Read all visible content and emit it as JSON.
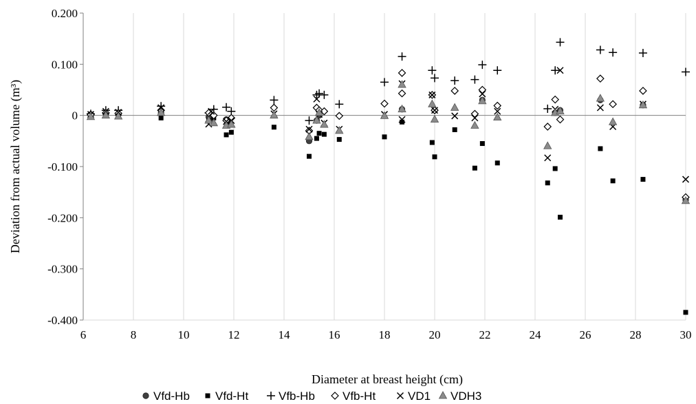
{
  "chart_data": {
    "type": "scatter",
    "xlabel": "Diameter at breast height (cm)",
    "ylabel": "Deviation from actual volume (m³)",
    "xlim": [
      6,
      30
    ],
    "ylim": [
      -0.4,
      0.2
    ],
    "x_ticks": [
      "6",
      "8",
      "10",
      "12",
      "14",
      "16",
      "18",
      "20",
      "22",
      "24",
      "26",
      "28",
      "30"
    ],
    "y_ticks": [
      "0.200",
      "0.100",
      "0",
      "-0.100",
      "-0.200",
      "-0.300",
      "-0.400"
    ],
    "grid": "vertical",
    "legend_position": "bottom",
    "series": [
      {
        "name": "Vfd-Hb",
        "marker": "circle",
        "color": "#404040",
        "points": [
          [
            6.3,
            0.002
          ],
          [
            6.9,
            0.003
          ],
          [
            7.4,
            0.002
          ],
          [
            9.1,
            0.005
          ],
          [
            11,
            -0.003
          ],
          [
            11.1,
            -0.005
          ],
          [
            11.7,
            -0.008
          ],
          [
            11.8,
            -0.012
          ],
          [
            15,
            -0.05
          ],
          [
            15.3,
            -0.01
          ],
          [
            15.4,
            0.0
          ],
          [
            18.7,
            0.012
          ],
          [
            20,
            0.01
          ],
          [
            21.9,
            0.03
          ],
          [
            24.8,
            0.005
          ],
          [
            25,
            0.01
          ],
          [
            26.6,
            0.03
          ],
          [
            28.3,
            0.02
          ],
          [
            30,
            -0.165
          ]
        ]
      },
      {
        "name": "Vfd-Ht",
        "marker": "square",
        "color": "#000000",
        "points": [
          [
            6.3,
            -0.001
          ],
          [
            6.9,
            -0.001
          ],
          [
            7.4,
            -0.001
          ],
          [
            9.1,
            -0.005
          ],
          [
            11,
            -0.01
          ],
          [
            11.2,
            -0.005
          ],
          [
            11.7,
            -0.038
          ],
          [
            11.9,
            -0.033
          ],
          [
            13.6,
            -0.023
          ],
          [
            15,
            -0.08
          ],
          [
            15.3,
            -0.045
          ],
          [
            15.4,
            -0.035
          ],
          [
            15.6,
            -0.037
          ],
          [
            16.2,
            -0.047
          ],
          [
            18,
            -0.042
          ],
          [
            18.7,
            -0.013
          ],
          [
            19.9,
            -0.053
          ],
          [
            20,
            -0.081
          ],
          [
            20.8,
            -0.028
          ],
          [
            21.6,
            -0.103
          ],
          [
            21.9,
            -0.055
          ],
          [
            22.5,
            -0.093
          ],
          [
            24.5,
            -0.132
          ],
          [
            24.8,
            -0.104
          ],
          [
            25,
            -0.199
          ],
          [
            26.6,
            -0.065
          ],
          [
            27.1,
            -0.128
          ],
          [
            28.3,
            -0.125
          ],
          [
            30,
            -0.385
          ]
        ]
      },
      {
        "name": "Vfb-Hb",
        "marker": "plus",
        "color": "#000000",
        "points": [
          [
            6.3,
            0.003
          ],
          [
            6.9,
            0.01
          ],
          [
            7.4,
            0.01
          ],
          [
            9.1,
            0.018
          ],
          [
            11,
            0.005
          ],
          [
            11.2,
            0.012
          ],
          [
            11.7,
            0.016
          ],
          [
            11.9,
            0.008
          ],
          [
            13.6,
            0.03
          ],
          [
            15,
            -0.01
          ],
          [
            15.3,
            0.04
          ],
          [
            15.4,
            0.043
          ],
          [
            15.6,
            0.04
          ],
          [
            16.2,
            0.022
          ],
          [
            18,
            0.065
          ],
          [
            18.7,
            0.115
          ],
          [
            19.9,
            0.088
          ],
          [
            20,
            0.073
          ],
          [
            20.8,
            0.068
          ],
          [
            21.6,
            0.07
          ],
          [
            21.9,
            0.099
          ],
          [
            22.5,
            0.088
          ],
          [
            24.5,
            0.013
          ],
          [
            24.8,
            0.088
          ],
          [
            25,
            0.143
          ],
          [
            26.6,
            0.128
          ],
          [
            27.1,
            0.123
          ],
          [
            28.3,
            0.122
          ],
          [
            30,
            0.085
          ]
        ]
      },
      {
        "name": "Vfb-Ht",
        "marker": "diamond",
        "color": "#000000",
        "points": [
          [
            6.3,
            0.001
          ],
          [
            6.9,
            0.005
          ],
          [
            7.4,
            0.004
          ],
          [
            9.1,
            0.01
          ],
          [
            11,
            0.005
          ],
          [
            11.2,
            0.0
          ],
          [
            11.7,
            -0.01
          ],
          [
            11.9,
            -0.005
          ],
          [
            13.6,
            0.015
          ],
          [
            15,
            -0.03
          ],
          [
            15.3,
            0.015
          ],
          [
            15.4,
            0.01
          ],
          [
            15.6,
            0.008
          ],
          [
            16.2,
            -0.001
          ],
          [
            18,
            0.023
          ],
          [
            18.7,
            0.083
          ],
          [
            18.7,
            0.043
          ],
          [
            19.9,
            0.04
          ],
          [
            20,
            0.01
          ],
          [
            20.8,
            0.048
          ],
          [
            21.6,
            0.003
          ],
          [
            21.9,
            0.05
          ],
          [
            22.5,
            0.019
          ],
          [
            24.5,
            -0.022
          ],
          [
            24.8,
            0.031
          ],
          [
            25,
            -0.008
          ],
          [
            26.6,
            0.072
          ],
          [
            27.1,
            0.022
          ],
          [
            28.3,
            0.048
          ],
          [
            30,
            -0.16
          ]
        ]
      },
      {
        "name": "VD1",
        "marker": "cross",
        "color": "#000000",
        "points": [
          [
            6.3,
            0.002
          ],
          [
            6.9,
            0.008
          ],
          [
            7.4,
            0.006
          ],
          [
            9.1,
            0.015
          ],
          [
            11,
            -0.017
          ],
          [
            11.1,
            0.008
          ],
          [
            11.7,
            -0.012
          ],
          [
            11.9,
            -0.01
          ],
          [
            13.6,
            0.003
          ],
          [
            15,
            -0.027
          ],
          [
            15.3,
            0.032
          ],
          [
            15.4,
            0.002
          ],
          [
            15.6,
            -0.015
          ],
          [
            16.2,
            -0.027
          ],
          [
            18,
            0.002
          ],
          [
            18.7,
            0.062
          ],
          [
            18.7,
            -0.008
          ],
          [
            19.9,
            0.04
          ],
          [
            20,
            0.01
          ],
          [
            20.8,
            -0.001
          ],
          [
            21.6,
            -0.005
          ],
          [
            21.9,
            0.042
          ],
          [
            22.5,
            0.008
          ],
          [
            24.5,
            -0.083
          ],
          [
            24.8,
            0.012
          ],
          [
            25,
            0.088
          ],
          [
            26.6,
            0.015
          ],
          [
            27.1,
            -0.022
          ],
          [
            28.3,
            0.022
          ],
          [
            30,
            -0.125
          ]
        ]
      },
      {
        "name": "VDH3",
        "marker": "triangle",
        "color": "#8c8c8c",
        "points": [
          [
            6.3,
            -0.003
          ],
          [
            6.9,
            0.0
          ],
          [
            7.4,
            -0.002
          ],
          [
            9.1,
            0.005
          ],
          [
            11,
            -0.01
          ],
          [
            11.2,
            -0.015
          ],
          [
            11.7,
            -0.02
          ],
          [
            11.9,
            -0.018
          ],
          [
            13.6,
            0.0
          ],
          [
            15,
            -0.042
          ],
          [
            15.3,
            -0.01
          ],
          [
            15.4,
            0.005
          ],
          [
            15.6,
            -0.018
          ],
          [
            16.2,
            -0.03
          ],
          [
            18,
            -0.001
          ],
          [
            18.7,
            0.06
          ],
          [
            18.7,
            0.012
          ],
          [
            19.9,
            0.022
          ],
          [
            20,
            -0.008
          ],
          [
            20.8,
            0.015
          ],
          [
            21.6,
            -0.02
          ],
          [
            21.9,
            0.028
          ],
          [
            22.5,
            -0.004
          ],
          [
            24.5,
            -0.06
          ],
          [
            24.8,
            0.005
          ],
          [
            25,
            0.008
          ],
          [
            26.6,
            0.033
          ],
          [
            27.1,
            -0.013
          ],
          [
            28.3,
            0.02
          ],
          [
            30,
            -0.167
          ]
        ]
      }
    ]
  }
}
